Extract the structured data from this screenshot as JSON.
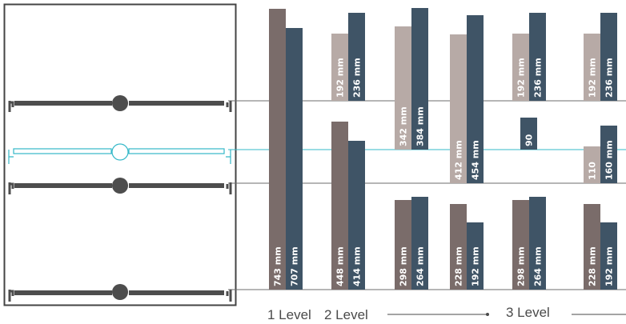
{
  "colors": {
    "taupe": "#7a6c6a",
    "taupe_light": "#b7aaa6",
    "navy": "#3f5466",
    "rail": "#4d4d4d",
    "highlight": "#34b8c8",
    "guide": "#6e6e6e",
    "frame": "#444444"
  },
  "chart_data": {
    "type": "bar",
    "unit": "mm",
    "groups": [
      {
        "level": "1 Level",
        "segments": [
          {
            "bars": [
              {
                "label": "743 mm",
                "value": 743,
                "color": "taupe"
              },
              {
                "label": "707 mm",
                "value": 707,
                "color": "navy"
              }
            ]
          }
        ]
      },
      {
        "level": "2 Level",
        "segments": [
          {
            "bars": [
              {
                "label": "192 mm",
                "value": 192,
                "color": "taupe_light"
              },
              {
                "label": "236 mm",
                "value": 236,
                "color": "navy"
              }
            ]
          },
          {
            "bars": [
              {
                "label": "448 mm",
                "value": 448,
                "color": "taupe"
              },
              {
                "label": "414 mm",
                "value": 414,
                "color": "navy"
              }
            ]
          }
        ]
      },
      {
        "level": "2 Level",
        "segments": [
          {
            "bars": [
              {
                "label": "342 mm",
                "value": 342,
                "color": "taupe_light"
              },
              {
                "label": "384 mm",
                "value": 384,
                "color": "navy"
              }
            ]
          },
          {
            "bars": [
              {
                "label": "298 mm",
                "value": 298,
                "color": "taupe"
              },
              {
                "label": "264 mm",
                "value": 264,
                "color": "navy"
              }
            ]
          }
        ]
      },
      {
        "level": "2 Level",
        "segments": [
          {
            "bars": [
              {
                "label": "412 mm",
                "value": 412,
                "color": "taupe_light"
              },
              {
                "label": "454 mm",
                "value": 454,
                "color": "navy"
              }
            ]
          },
          {
            "bars": [
              {
                "label": "228 mm",
                "value": 228,
                "color": "taupe"
              },
              {
                "label": "192 mm",
                "value": 192,
                "color": "navy"
              }
            ]
          }
        ]
      },
      {
        "level": "3 Level",
        "segments": [
          {
            "bars": [
              {
                "label": "192 mm",
                "value": 192,
                "color": "taupe_light"
              },
              {
                "label": "236 mm",
                "value": 236,
                "color": "navy"
              }
            ]
          },
          {
            "bars": [
              {
                "label": "90",
                "value": 90,
                "color": "navy"
              }
            ]
          },
          {
            "bars": [
              {
                "label": "298 mm",
                "value": 298,
                "color": "taupe"
              },
              {
                "label": "264 mm",
                "value": 264,
                "color": "navy"
              }
            ]
          }
        ]
      },
      {
        "level": "3 Level",
        "segments": [
          {
            "bars": [
              {
                "label": "192 mm",
                "value": 192,
                "color": "taupe_light"
              },
              {
                "label": "236 mm",
                "value": 236,
                "color": "navy"
              }
            ]
          },
          {
            "bars": [
              {
                "label": "110",
                "value": 110,
                "color": "taupe_light"
              },
              {
                "label": "160 mm",
                "value": 160,
                "color": "navy"
              }
            ]
          },
          {
            "bars": [
              {
                "label": "228 mm",
                "value": 228,
                "color": "taupe"
              },
              {
                "label": "192 mm",
                "value": 192,
                "color": "navy"
              }
            ]
          }
        ]
      }
    ],
    "level_labels": [
      "1 Level",
      "2 Level",
      "3 Level"
    ]
  }
}
